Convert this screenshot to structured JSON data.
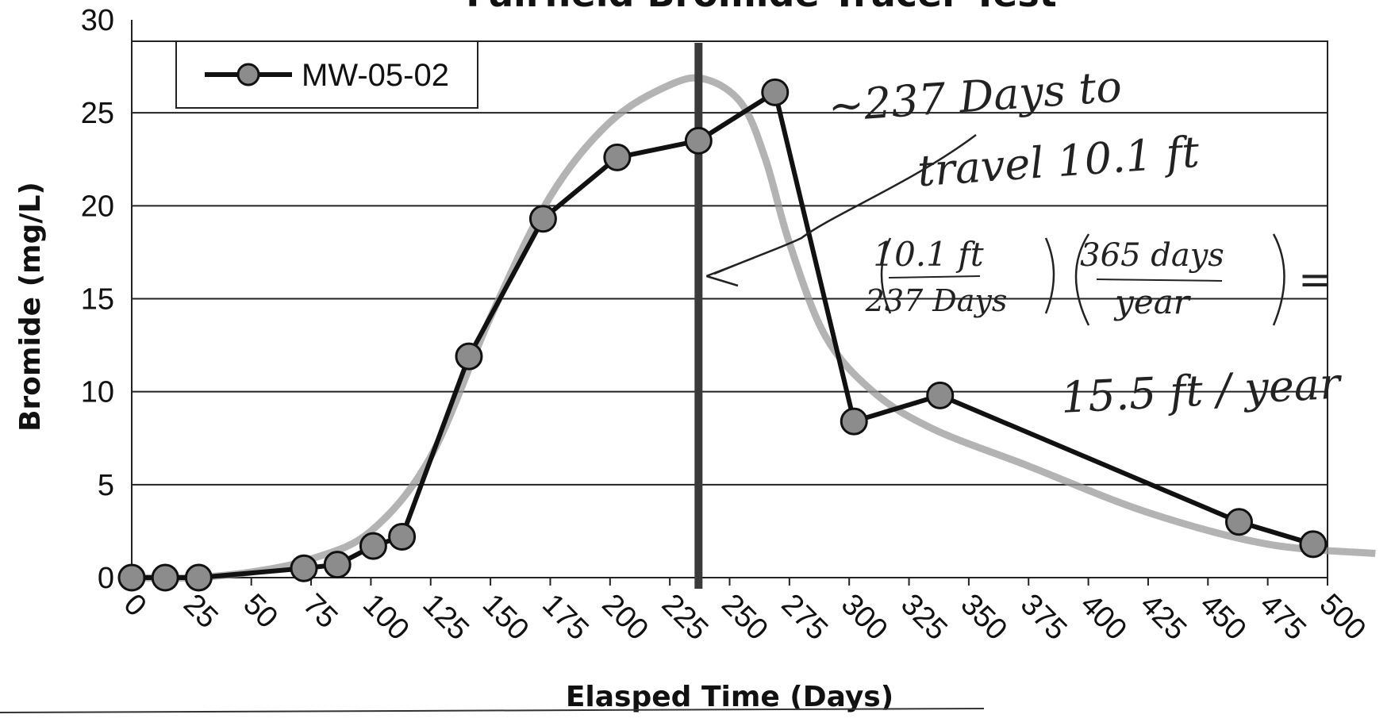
{
  "chart_data": {
    "type": "line",
    "title": "Fairfield Bromide Tracer Test",
    "xlabel": "Elasped Time (Days)",
    "ylabel": "Bromide (mg/L)",
    "xlim": [
      0,
      500
    ],
    "ylim": [
      0,
      30
    ],
    "x_ticks": [
      "0",
      "25",
      "50",
      "75",
      "100",
      "125",
      "150",
      "175",
      "200",
      "225",
      "250",
      "275",
      "300",
      "325",
      "350",
      "375",
      "400",
      "425",
      "450",
      "475",
      "500"
    ],
    "y_ticks": [
      "0",
      "5",
      "10",
      "15",
      "20",
      "25",
      "30"
    ],
    "grid": "horizontal",
    "legend_position": "top-left",
    "series": [
      {
        "name": "MW-05-02",
        "color": "#111111",
        "marker_color": "#8c8c8c",
        "x": [
          0,
          14,
          28,
          72,
          86,
          101,
          113,
          141,
          172,
          203,
          237,
          269,
          302,
          338,
          463,
          494
        ],
        "y": [
          0,
          0,
          0,
          0.5,
          0.7,
          1.7,
          2.2,
          11.9,
          19.3,
          22.6,
          23.5,
          26.1,
          8.4,
          9.8,
          3.0,
          1.8
        ]
      }
    ],
    "fitted_curve": {
      "color": "#9a9a9a",
      "x": [
        0,
        25,
        50,
        75,
        100,
        125,
        150,
        175,
        200,
        225,
        240,
        255,
        265,
        275,
        290,
        310,
        335,
        375,
        425,
        475,
        520
      ],
      "y": [
        0,
        0,
        0.3,
        1.0,
        2.5,
        6.5,
        14,
        20.5,
        24.5,
        26.5,
        26.8,
        25.5,
        22.5,
        18,
        13,
        10,
        8,
        6,
        3.5,
        1.8,
        1.3
      ]
    },
    "vertical_line": {
      "x": 237,
      "color": "#3a3a3a"
    },
    "annotations": {
      "line1": "~237 Days to",
      "line2": "travel 10.1 ft",
      "frac1_num": "10.1 ft",
      "frac1_den": "237 Days",
      "frac2_num": "365 days",
      "frac2_den": "year",
      "equals": "=",
      "result": "15.5 ft / year"
    }
  }
}
